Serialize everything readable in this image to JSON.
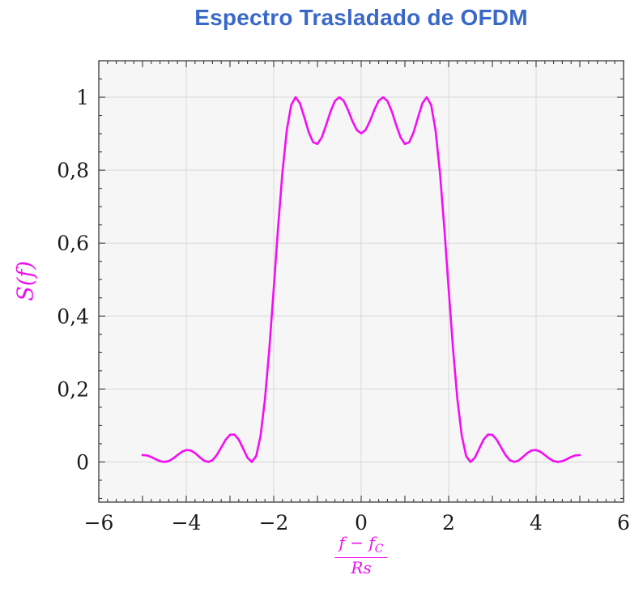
{
  "title": "Espectro Trasladado de OFDM",
  "ylabel": "S(f)",
  "xlabel_fraction": {
    "numerator_main": "f − f",
    "numerator_sub": "C",
    "denominator": "Rs"
  },
  "colors": {
    "title_text": "#3a68c9",
    "curve": "#f40df4",
    "axis_label": "#ee10ee",
    "plot_bg": "#f6f6f6",
    "grid": "#d8d8d8",
    "frame": "#3a3a3a",
    "tick_text": "#1b1b1b"
  },
  "chart_data": {
    "type": "line",
    "title": "Espectro Trasladado de OFDM",
    "xlabel": "(f − f_C)/Rs",
    "ylabel": "S(f)",
    "xlim": [
      -6,
      6
    ],
    "ylim": [
      -0.11,
      1.1
    ],
    "xticks": [
      -6,
      -4,
      -2,
      0,
      2,
      4,
      6
    ],
    "xtick_labels": [
      "−6",
      "−4",
      "−2",
      "0",
      "2",
      "4",
      "6"
    ],
    "yticks": [
      0,
      0.2,
      0.4,
      0.6,
      0.8,
      1
    ],
    "ytick_labels": [
      "0",
      "0,2",
      "0,4",
      "0,6",
      "0,8",
      "1"
    ],
    "x_minor_step": 0.2,
    "y_minor_step": 0.05,
    "grid": true,
    "legend": "none",
    "series": [
      {
        "name": "S(f)",
        "color": "#f40df4",
        "x": [
          -5,
          -4.9,
          -4.8,
          -4.7,
          -4.6,
          -4.5,
          -4.4,
          -4.3,
          -4.2,
          -4.1,
          -4,
          -3.9,
          -3.8,
          -3.7,
          -3.6,
          -3.5,
          -3.4,
          -3.3,
          -3.2,
          -3.1,
          -3,
          -2.9,
          -2.8,
          -2.7,
          -2.6,
          -2.5,
          -2.4,
          -2.3,
          -2.2,
          -2.1,
          -2,
          -1.9,
          -1.8,
          -1.7,
          -1.6,
          -1.5,
          -1.4,
          -1.3,
          -1.2,
          -1.1,
          -1,
          -0.9,
          -0.8,
          -0.7,
          -0.6,
          -0.5,
          -0.4,
          -0.3,
          -0.2,
          -0.1,
          0,
          0.1,
          0.2,
          0.3,
          0.4,
          0.5,
          0.6,
          0.7,
          0.8,
          0.9,
          1,
          1.1,
          1.2,
          1.3,
          1.4,
          1.5,
          1.6,
          1.7,
          1.8,
          1.9,
          2,
          2.1,
          2.2,
          2.3,
          2.4,
          2.5,
          2.6,
          2.7,
          2.8,
          2.9,
          3,
          3.1,
          3.2,
          3.3,
          3.4,
          3.5,
          3.6,
          3.7,
          3.8,
          3.9,
          4,
          4.1,
          4.2,
          4.3,
          4.4,
          4.5,
          4.6,
          4.7,
          4.8,
          4.9,
          5
        ],
        "y": [
          0.019,
          0.018,
          0.0137,
          0.0076,
          0.0022,
          0,
          0.0025,
          0.0095,
          0.019,
          0.0279,
          0.0328,
          0.0317,
          0.0246,
          0.0139,
          0.0041,
          0,
          0.0049,
          0.0192,
          0.0399,
          0.0608,
          0.0745,
          0.0753,
          0.0615,
          0.0369,
          0.0118,
          0,
          0.0164,
          0.0724,
          0.1722,
          0.311,
          0.4748,
          0.6434,
          0.7947,
          0.91,
          0.9787,
          1,
          0.9833,
          0.945,
          0.9042,
          0.8768,
          0.8719,
          0.8901,
          0.924,
          0.9613,
          0.9897,
          1,
          0.9902,
          0.965,
          0.9344,
          0.91,
          0.9007,
          0.91,
          0.9344,
          0.965,
          0.9902,
          1,
          0.9897,
          0.9613,
          0.924,
          0.8901,
          0.8719,
          0.8768,
          0.9042,
          0.945,
          0.9833,
          1,
          0.9787,
          0.91,
          0.7947,
          0.6434,
          0.4748,
          0.311,
          0.1722,
          0.0724,
          0.0164,
          0,
          0.0118,
          0.0369,
          0.0615,
          0.0753,
          0.0745,
          0.0608,
          0.0399,
          0.0192,
          0.0049,
          0,
          0.0041,
          0.0139,
          0.0246,
          0.0317,
          0.0328,
          0.0279,
          0.019,
          0.0095,
          0.0025,
          0,
          0.0022,
          0.0076,
          0.0137,
          0.018,
          0.019
        ]
      }
    ]
  }
}
